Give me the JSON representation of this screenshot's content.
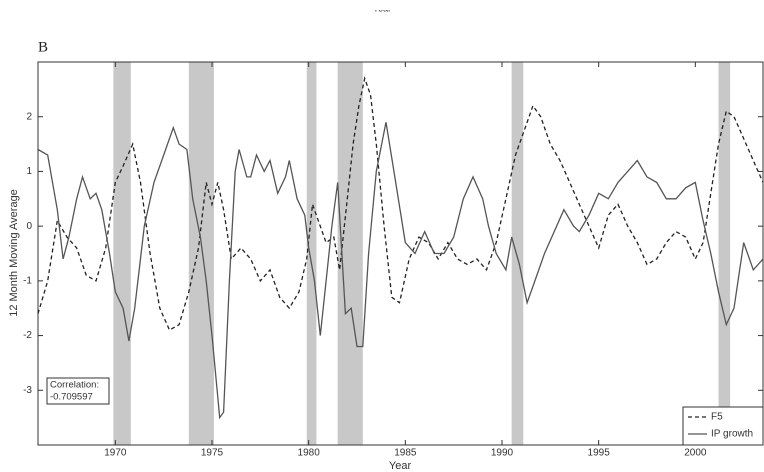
{
  "clipped_label": "Year",
  "chart_data": {
    "type": "line",
    "panel_label": "B",
    "x_label": "Year",
    "y_label": "12 Month Moving Average",
    "xlim": [
      1966,
      2003.5
    ],
    "ylim": [
      -4,
      3
    ],
    "xticks": [
      1970,
      1975,
      1980,
      1985,
      1990,
      1995,
      2000
    ],
    "yticks": [
      -3,
      -2,
      -1,
      0,
      1,
      2
    ],
    "grid": false,
    "legend": "lower right",
    "shaded_periods": [
      [
        1969.9,
        1970.8
      ],
      [
        1973.8,
        1975.1
      ],
      [
        1979.9,
        1980.4
      ],
      [
        1981.5,
        1982.8
      ],
      [
        1990.5,
        1991.1
      ],
      [
        2001.2,
        2001.8
      ]
    ],
    "shade_color": "#c8c8c8",
    "annotation": [
      "Correlation:",
      "-0.709597"
    ],
    "series": [
      {
        "name": "F5",
        "color": "#222222",
        "dash": true,
        "x": [
          1966,
          1966.5,
          1967,
          1967.5,
          1968,
          1968.5,
          1969,
          1969.5,
          1970,
          1970.4,
          1970.9,
          1971.3,
          1971.8,
          1972.3,
          1972.8,
          1973.3,
          1973.8,
          1974.3,
          1974.7,
          1975,
          1975.3,
          1975.6,
          1976,
          1976.5,
          1977,
          1977.5,
          1978,
          1978.5,
          1979,
          1979.5,
          1979.9,
          1980.2,
          1980.5,
          1980.9,
          1981.3,
          1981.6,
          1982,
          1982.3,
          1982.6,
          1982.9,
          1983.2,
          1983.5,
          1983.9,
          1984.3,
          1984.7,
          1985.2,
          1985.7,
          1986.2,
          1986.7,
          1987.2,
          1987.7,
          1988.2,
          1988.7,
          1989.2,
          1989.7,
          1990.2,
          1990.7,
          1991.2,
          1991.6,
          1992,
          1992.5,
          1993,
          1993.5,
          1994,
          1994.5,
          1995,
          1995.5,
          1996,
          1996.5,
          1997,
          1997.5,
          1998,
          1998.5,
          1999,
          1999.5,
          2000,
          2000.4,
          2000.8,
          2001.2,
          2001.6,
          2002,
          2002.5,
          2003,
          2003.5
        ],
        "values": [
          -1.6,
          -1.0,
          0.1,
          -0.2,
          -0.4,
          -0.9,
          -1.0,
          -0.4,
          0.8,
          1.1,
          1.5,
          0.8,
          -0.5,
          -1.5,
          -1.9,
          -1.8,
          -1.2,
          -0.4,
          0.8,
          0.4,
          0.8,
          0.3,
          -0.6,
          -0.4,
          -0.6,
          -1.0,
          -0.8,
          -1.3,
          -1.5,
          -1.2,
          -0.6,
          0.4,
          0.1,
          -0.3,
          -0.2,
          -0.8,
          0.5,
          1.5,
          2.2,
          2.7,
          2.4,
          1.5,
          0.0,
          -1.3,
          -1.4,
          -0.6,
          -0.2,
          -0.3,
          -0.6,
          -0.3,
          -0.6,
          -0.7,
          -0.6,
          -0.8,
          -0.3,
          0.5,
          1.3,
          1.8,
          2.2,
          2.0,
          1.5,
          1.2,
          0.8,
          0.4,
          0.0,
          -0.4,
          0.2,
          0.4,
          0.0,
          -0.3,
          -0.7,
          -0.6,
          -0.3,
          -0.1,
          -0.2,
          -0.6,
          -0.3,
          0.6,
          1.5,
          2.1,
          2.0,
          1.6,
          1.2,
          0.8
        ]
      },
      {
        "name": "IP growth",
        "color": "#555555",
        "dash": false,
        "x": [
          1966,
          1966.5,
          1967,
          1967.3,
          1967.6,
          1968,
          1968.3,
          1968.7,
          1969,
          1969.3,
          1969.7,
          1970,
          1970.4,
          1970.7,
          1971,
          1971.5,
          1972,
          1972.5,
          1973,
          1973.3,
          1973.7,
          1974,
          1974.4,
          1974.7,
          1975,
          1975.4,
          1975.6,
          1975.9,
          1976.2,
          1976.4,
          1976.8,
          1977,
          1977.3,
          1977.7,
          1978,
          1978.4,
          1978.8,
          1979,
          1979.4,
          1979.8,
          1980,
          1980.3,
          1980.6,
          1980.9,
          1981.2,
          1981.5,
          1981.9,
          1982.2,
          1982.5,
          1982.8,
          1983.1,
          1983.5,
          1984,
          1984.5,
          1985,
          1985.5,
          1986,
          1986.5,
          1987,
          1987.5,
          1988,
          1988.5,
          1989,
          1989.3,
          1989.7,
          1990.2,
          1990.5,
          1990.9,
          1991.3,
          1991.7,
          1992.2,
          1992.7,
          1993.2,
          1993.7,
          1994,
          1994.5,
          1995,
          1995.5,
          1996,
          1996.5,
          1997,
          1997.5,
          1998,
          1998.5,
          1999,
          1999.5,
          2000,
          2000.4,
          2000.8,
          2001.2,
          2001.6,
          2002,
          2002.5,
          2003,
          2003.5
        ],
        "values": [
          1.4,
          1.3,
          0.3,
          -0.6,
          -0.2,
          0.5,
          0.9,
          0.5,
          0.6,
          0.3,
          -0.5,
          -1.2,
          -1.5,
          -2.1,
          -1.5,
          0.0,
          0.8,
          1.3,
          1.8,
          1.5,
          1.4,
          0.5,
          -0.2,
          -1.0,
          -2.0,
          -3.5,
          -3.4,
          -1.0,
          1.0,
          1.4,
          0.9,
          0.9,
          1.3,
          1.0,
          1.2,
          0.6,
          0.9,
          1.2,
          0.5,
          0.2,
          -0.4,
          -1.0,
          -2.0,
          -1.0,
          0.0,
          0.8,
          -1.6,
          -1.5,
          -2.2,
          -2.2,
          -0.5,
          1.0,
          1.9,
          0.8,
          -0.3,
          -0.5,
          -0.1,
          -0.5,
          -0.5,
          -0.2,
          0.5,
          0.9,
          0.5,
          0.0,
          -0.5,
          -0.8,
          -0.2,
          -0.7,
          -1.4,
          -1.0,
          -0.5,
          -0.1,
          0.3,
          0.0,
          -0.1,
          0.2,
          0.6,
          0.5,
          0.8,
          1.0,
          1.2,
          0.9,
          0.8,
          0.5,
          0.5,
          0.7,
          0.8,
          0.1,
          -0.5,
          -1.2,
          -1.8,
          -1.5,
          -0.3,
          -0.8,
          -0.6
        ]
      }
    ]
  }
}
